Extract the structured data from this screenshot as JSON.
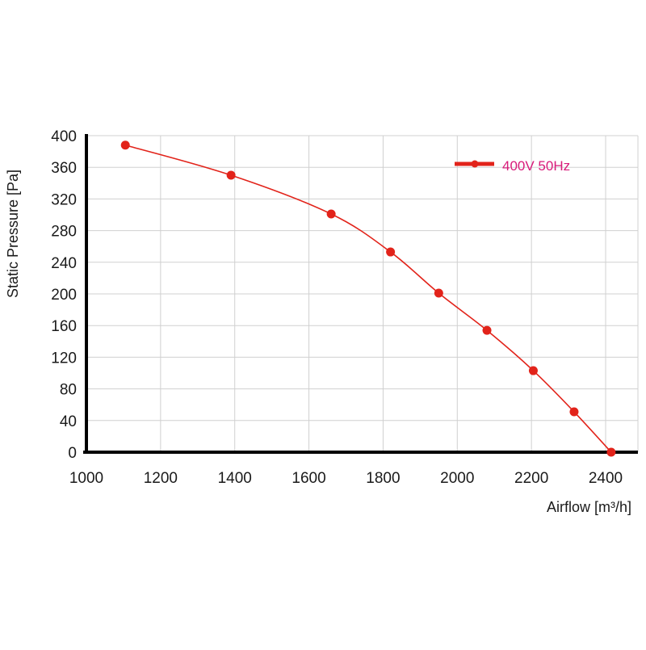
{
  "chart_data": {
    "type": "line",
    "title": "",
    "xlabel": "Airflow [m³/h]",
    "ylabel": "Static Pressure [Pa]",
    "xlim": [
      1000,
      2500
    ],
    "ylim": [
      0,
      400
    ],
    "x_ticks": [
      1000,
      1200,
      1400,
      1600,
      1800,
      2000,
      2200,
      2400
    ],
    "y_ticks": [
      0,
      40,
      80,
      120,
      160,
      200,
      240,
      280,
      320,
      360,
      400
    ],
    "grid": true,
    "legend_position": "top-right",
    "series": [
      {
        "name": "400V 50Hz",
        "color": "#e2231a",
        "label_color": "#d81b7a",
        "x": [
          1105,
          1390,
          1660,
          1820,
          1950,
          2080,
          2205,
          2315,
          2415
        ],
        "y": [
          388,
          350,
          301,
          253,
          201,
          154,
          103,
          51,
          0
        ]
      }
    ]
  }
}
